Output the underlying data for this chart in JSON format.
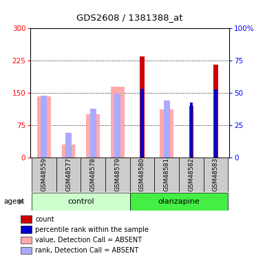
{
  "title": "GDS2608 / 1381388_at",
  "samples": [
    "GSM48559",
    "GSM48577",
    "GSM48578",
    "GSM48579",
    "GSM48580",
    "GSM48581",
    "GSM48582",
    "GSM48583"
  ],
  "groups": [
    "control",
    "control",
    "control",
    "control",
    "olanzapine",
    "olanzapine",
    "olanzapine",
    "olanzapine"
  ],
  "count_values": [
    0,
    0,
    0,
    0,
    235,
    0,
    120,
    215
  ],
  "percentile_values": [
    0,
    0,
    0,
    0,
    160,
    0,
    128,
    158
  ],
  "absent_value_values": [
    142,
    30,
    100,
    165,
    0,
    112,
    0,
    0
  ],
  "absent_rank_values": [
    143,
    58,
    113,
    148,
    0,
    133,
    0,
    0
  ],
  "ylim_left": [
    0,
    300
  ],
  "ylim_right": [
    0,
    100
  ],
  "left_yticks": [
    0,
    75,
    150,
    225,
    300
  ],
  "right_yticks": [
    0,
    25,
    50,
    75,
    100
  ],
  "color_count": "#cc0000",
  "color_percentile": "#0000cc",
  "color_absent_value": "#ffaaaa",
  "color_absent_rank": "#aaaaff",
  "color_control_light": "#ccffcc",
  "color_olanzapine_bright": "#44ee44",
  "legend_items": [
    "count",
    "percentile rank within the sample",
    "value, Detection Call = ABSENT",
    "rank, Detection Call = ABSENT"
  ],
  "legend_colors": [
    "#cc0000",
    "#0000cc",
    "#ffaaaa",
    "#aaaaff"
  ]
}
